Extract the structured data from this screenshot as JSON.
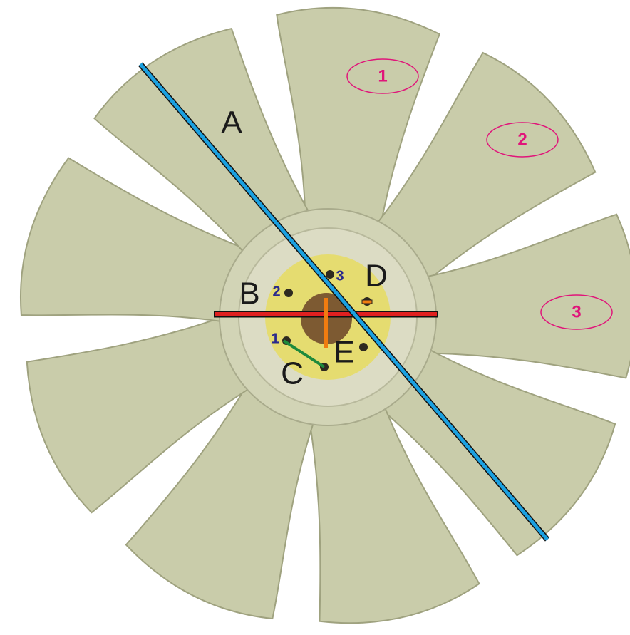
{
  "dimension_labels": [
    "A",
    "B",
    "C",
    "D",
    "E"
  ],
  "blade_labels": [
    "1",
    "2",
    "3"
  ],
  "hole_labels": [
    "1",
    "2",
    "3"
  ]
}
